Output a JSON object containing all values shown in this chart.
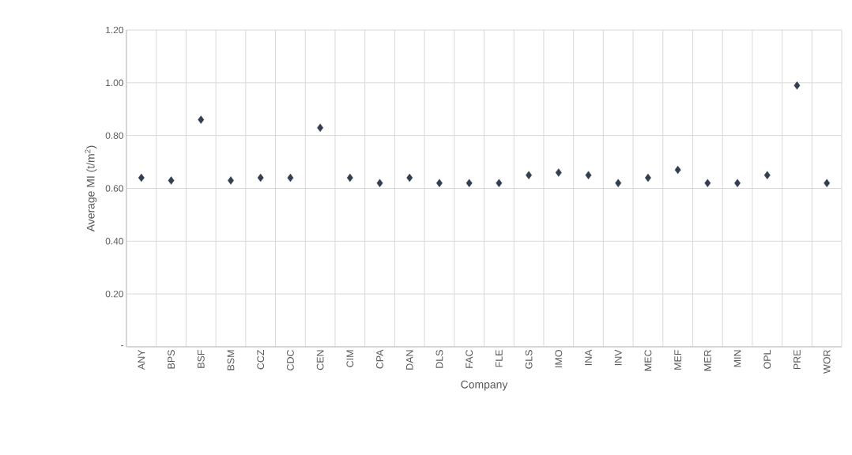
{
  "chart_data": {
    "type": "scatter",
    "xlabel": "Company",
    "ylabel": "Average MI (t/m$^{2}$)",
    "categories": [
      "ANY",
      "BPS",
      "BSF",
      "BSM",
      "CCZ",
      "CDC",
      "CEN",
      "CIM",
      "CPA",
      "DAN",
      "DLS",
      "FAC",
      "FLE",
      "GLS",
      "IMO",
      "INA",
      "INV",
      "MEC",
      "MEF",
      "MER",
      "MIN",
      "OPL",
      "PRE",
      "WOR"
    ],
    "values": [
      0.64,
      0.63,
      0.86,
      0.63,
      0.64,
      0.64,
      0.83,
      0.64,
      0.62,
      0.64,
      0.62,
      0.62,
      0.62,
      0.65,
      0.66,
      0.65,
      0.62,
      0.64,
      0.67,
      0.62,
      0.62,
      0.65,
      0.99,
      0.62
    ],
    "color": "#333f50",
    "ylim": [
      0,
      1.2
    ],
    "yticks": [
      {
        "value": 0,
        "label": "-"
      },
      {
        "value": 0.2,
        "label": "0.20"
      },
      {
        "value": 0.4,
        "label": "0.40"
      },
      {
        "value": 0.6,
        "label": "0.60"
      },
      {
        "value": 0.8,
        "label": "0.80"
      },
      {
        "value": 1.0,
        "label": "1.00"
      },
      {
        "value": 1.2,
        "label": "1.20"
      }
    ],
    "grid": true,
    "marker": "diamond"
  }
}
